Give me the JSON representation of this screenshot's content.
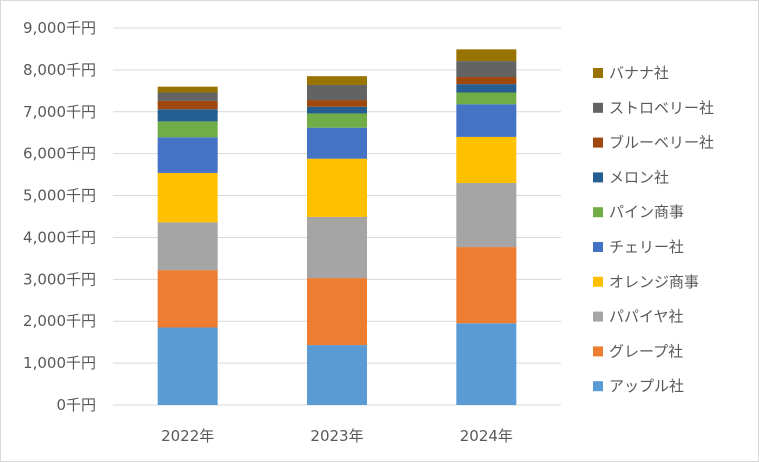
{
  "chart_data": {
    "type": "bar",
    "stacked": true,
    "title": "",
    "xlabel": "",
    "ylabel": "",
    "categories": [
      "2022年",
      "2023年",
      "2024年"
    ],
    "ylim": [
      0,
      9000
    ],
    "yticks": [
      0,
      1000,
      2000,
      3000,
      4000,
      5000,
      6000,
      7000,
      8000,
      9000
    ],
    "ytick_labels": [
      "0千円",
      "1,000千円",
      "2,000千円",
      "3,000千円",
      "4,000千円",
      "5,000千円",
      "6,000千円",
      "7,000千円",
      "8,000千円",
      "9,000千円"
    ],
    "grid": true,
    "legend_position": "right",
    "series": [
      {
        "name": "アップル社",
        "color": "#5b9bd5",
        "values": [
          1850,
          1430,
          1950
        ]
      },
      {
        "name": "グレープ社",
        "color": "#ed7d31",
        "values": [
          1370,
          1600,
          1820
        ]
      },
      {
        "name": "パパイヤ社",
        "color": "#a5a5a5",
        "values": [
          1140,
          1460,
          1530
        ]
      },
      {
        "name": "オレンジ商事",
        "color": "#ffc000",
        "values": [
          1180,
          1390,
          1100
        ]
      },
      {
        "name": "チェリー社",
        "color": "#4472c4",
        "values": [
          850,
          740,
          780
        ]
      },
      {
        "name": "パイン商事",
        "color": "#70ad47",
        "values": [
          380,
          340,
          280
        ]
      },
      {
        "name": "メロン社",
        "color": "#255e91",
        "values": [
          290,
          160,
          200
        ]
      },
      {
        "name": "ブルーベリー社",
        "color": "#9e480e",
        "values": [
          200,
          160,
          170
        ]
      },
      {
        "name": "ストロベリー社",
        "color": "#636363",
        "values": [
          200,
          360,
          380
        ]
      },
      {
        "name": "バナナ社",
        "color": "#997300",
        "values": [
          140,
          210,
          280
        ]
      }
    ]
  }
}
